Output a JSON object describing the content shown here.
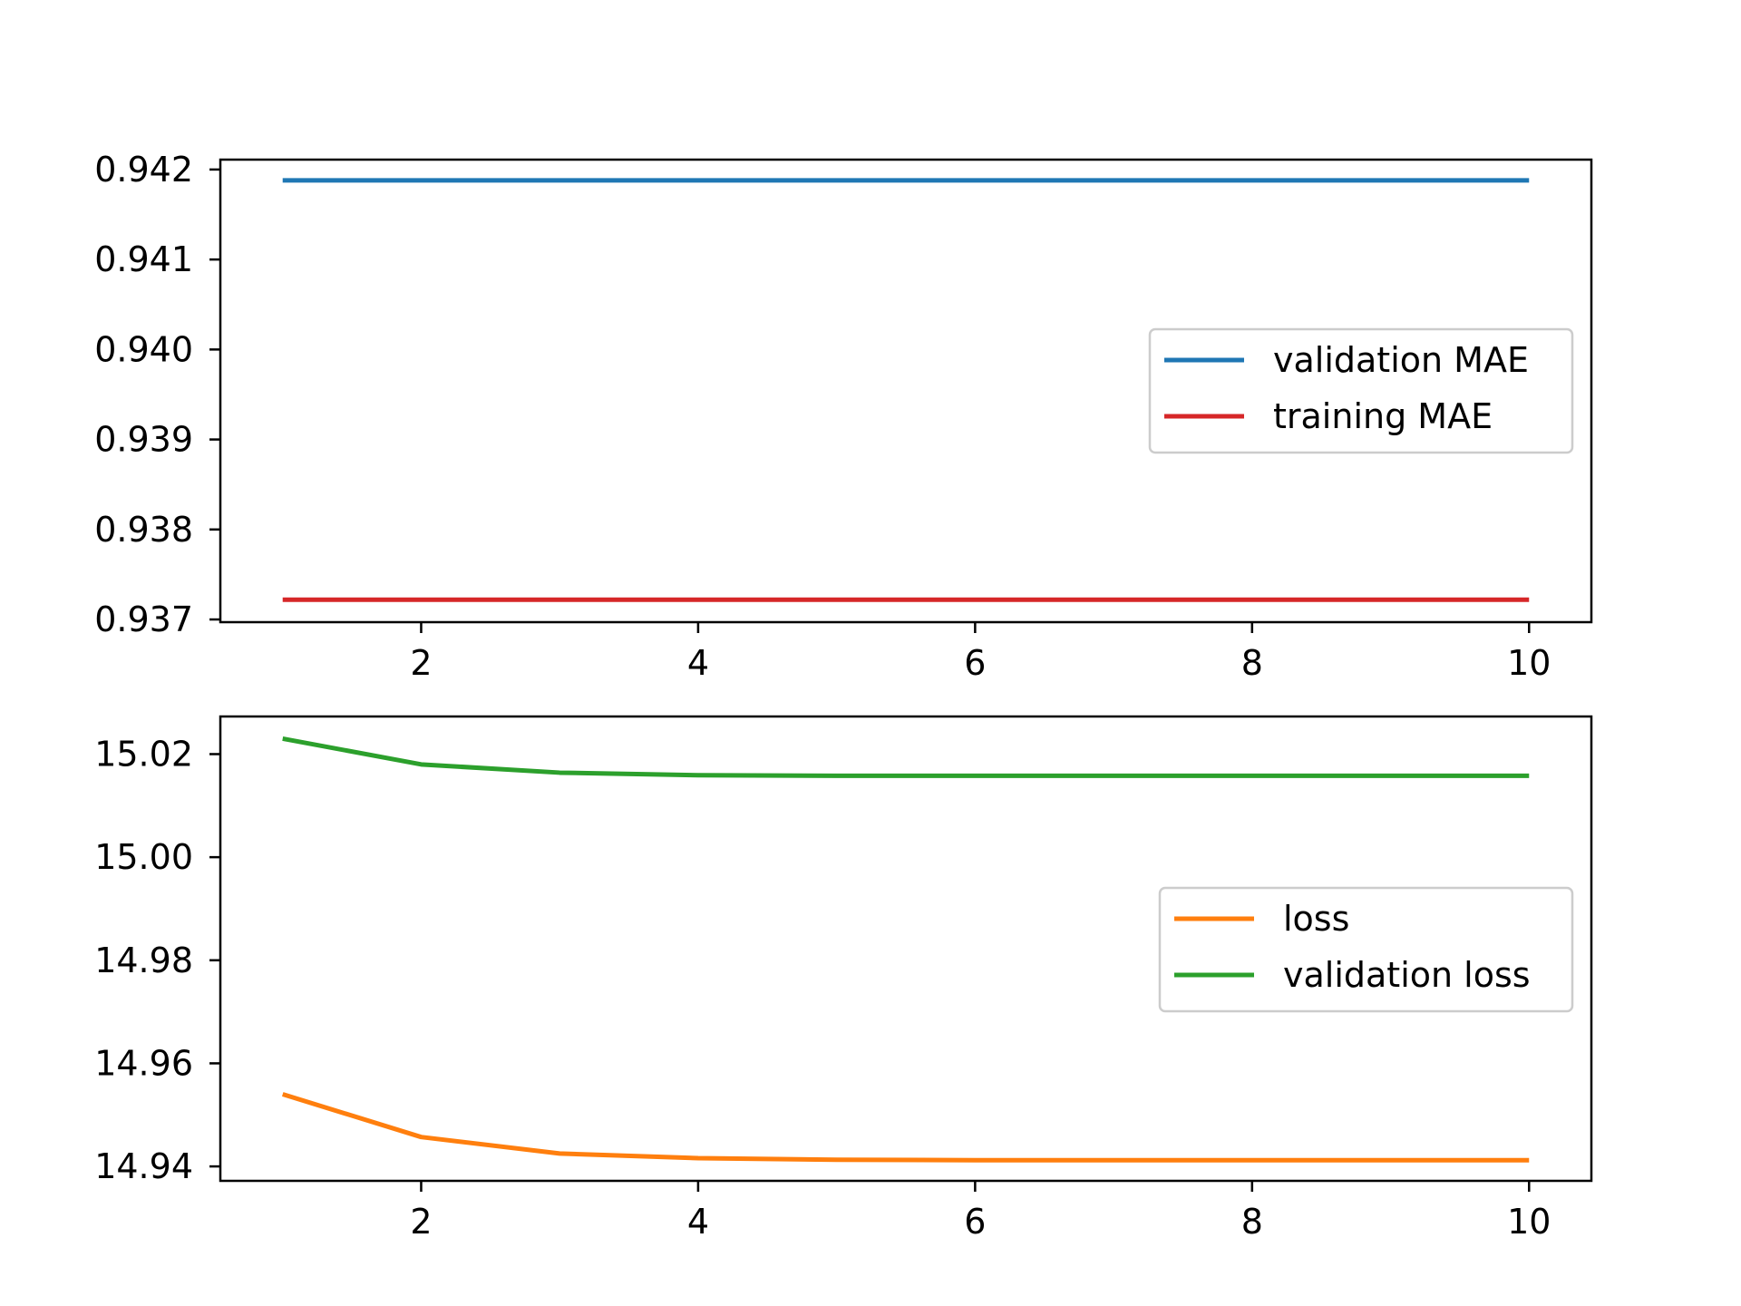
{
  "chart_data": [
    {
      "type": "line",
      "x": [
        1,
        2,
        3,
        4,
        5,
        6,
        7,
        8,
        9,
        10
      ],
      "xlim": [
        0.55,
        10.45
      ],
      "ylim": [
        0.93697,
        0.94211
      ],
      "xticks": [
        2,
        4,
        6,
        8,
        10
      ],
      "xtick_labels": [
        "2",
        "4",
        "6",
        "8",
        "10"
      ],
      "yticks": [
        0.937,
        0.938,
        0.939,
        0.94,
        0.941,
        0.942
      ],
      "ytick_labels": [
        "0.937",
        "0.938",
        "0.939",
        "0.940",
        "0.941",
        "0.942"
      ],
      "grid": false,
      "legend_position": "center-right",
      "series": [
        {
          "name": "validation MAE",
          "color": "#1f77b4",
          "values": [
            0.94188,
            0.94188,
            0.94188,
            0.94188,
            0.94188,
            0.94188,
            0.94188,
            0.94188,
            0.94188,
            0.94188
          ]
        },
        {
          "name": "training MAE",
          "color": "#d62728",
          "values": [
            0.93722,
            0.93722,
            0.93722,
            0.93722,
            0.93722,
            0.93722,
            0.93722,
            0.93722,
            0.93722,
            0.93722
          ]
        }
      ]
    },
    {
      "type": "line",
      "x": [
        1,
        2,
        3,
        4,
        5,
        6,
        7,
        8,
        9,
        10
      ],
      "xlim": [
        0.55,
        10.45
      ],
      "ylim": [
        14.9372,
        15.0273
      ],
      "xticks": [
        2,
        4,
        6,
        8,
        10
      ],
      "xtick_labels": [
        "2",
        "4",
        "6",
        "8",
        "10"
      ],
      "yticks": [
        14.94,
        14.96,
        14.98,
        15.0,
        15.02
      ],
      "ytick_labels": [
        "14.94",
        "14.96",
        "14.98",
        "15.00",
        "15.02"
      ],
      "grid": false,
      "legend_position": "center-right",
      "series": [
        {
          "name": "loss",
          "color": "#ff7f0e",
          "values": [
            14.954,
            14.9457,
            14.9425,
            14.9416,
            14.9413,
            14.9412,
            14.9412,
            14.9412,
            14.9412,
            14.9412
          ]
        },
        {
          "name": "validation loss",
          "color": "#2ca02c",
          "values": [
            15.023,
            15.018,
            15.0164,
            15.0159,
            15.0158,
            15.0158,
            15.0158,
            15.0158,
            15.0158,
            15.0158
          ]
        }
      ]
    }
  ]
}
